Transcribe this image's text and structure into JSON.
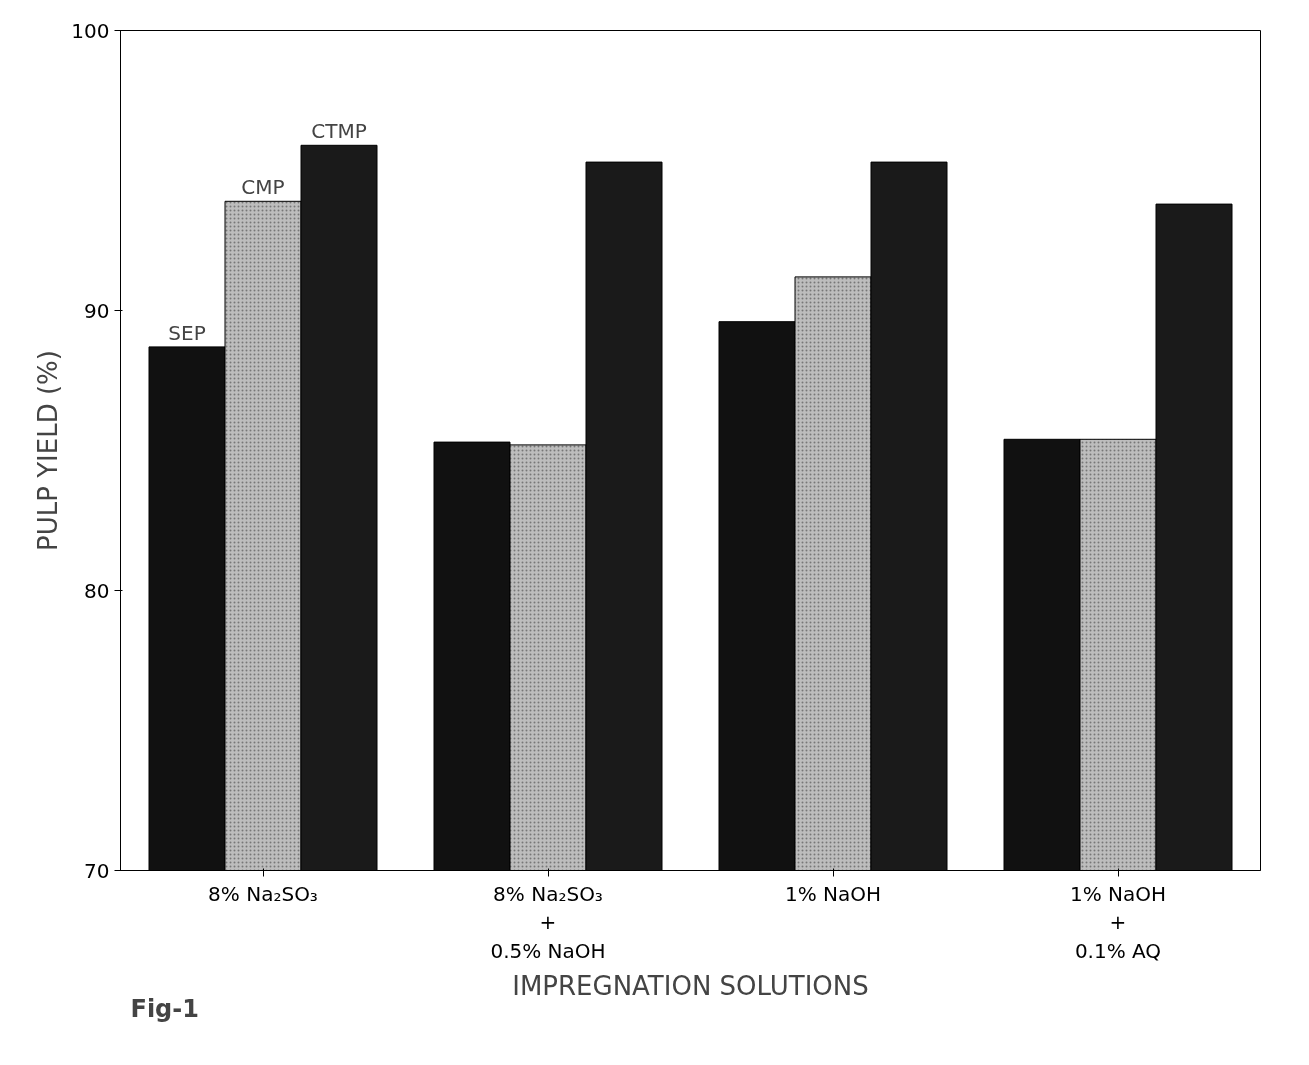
{
  "chart_data": {
    "type": "bar",
    "xlabel": "IMPREGNATION SOLUTIONS",
    "ylabel": "PULP YIELD (%)",
    "categories": [
      "8% Na₂SO₃",
      "8% Na₂SO₃\n+\n0.5% NaOH",
      "1% NaOH",
      "1% NaOH\n+\n0.1% AQ"
    ],
    "series": [
      {
        "name": "SEP",
        "color": "#111111",
        "values": [
          88.7,
          85.3,
          89.6,
          85.4
        ]
      },
      {
        "name": "CMP",
        "color": "#bdbdbd",
        "values": [
          93.9,
          85.2,
          91.2,
          85.4
        ]
      },
      {
        "name": "CTMP",
        "color": "#1a1a1a",
        "values": [
          95.9,
          95.3,
          95.3,
          93.8
        ]
      }
    ],
    "ylim": [
      70,
      100
    ],
    "yticks": [
      70,
      80,
      90,
      100
    ],
    "grid": false,
    "annotations": [
      "Fig-1"
    ]
  }
}
